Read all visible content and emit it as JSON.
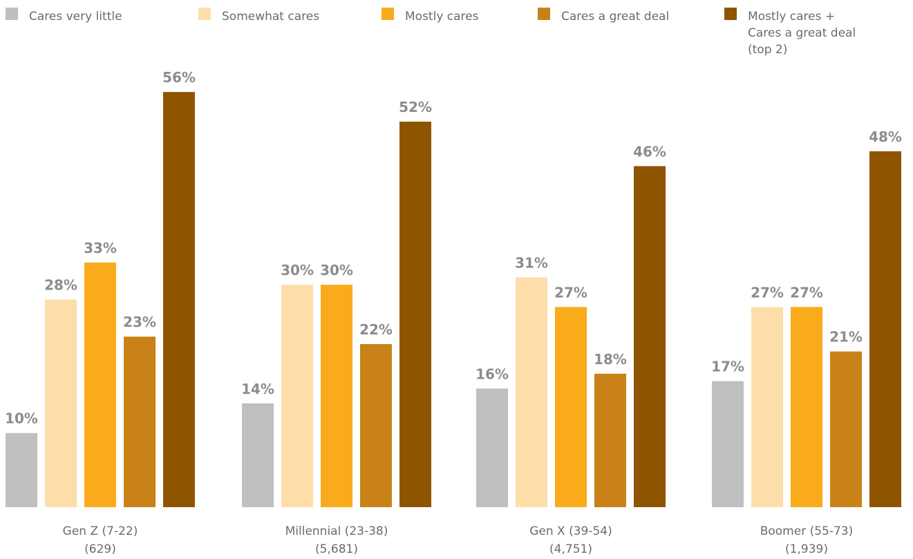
{
  "chart_data": {
    "type": "bar",
    "title": "",
    "xlabel": "",
    "ylabel": "",
    "ylim": [
      0,
      56
    ],
    "grid": false,
    "legend_position": "top",
    "categories": [
      [
        "Gen Z (7-22)",
        "(629)"
      ],
      [
        "Millennial (23-38)",
        "(5,681)"
      ],
      [
        "Gen X (39-54)",
        "(4,751)"
      ],
      [
        "Boomer (55-73)",
        "(1,939)"
      ]
    ],
    "series": [
      {
        "name": [
          "Cares very little"
        ],
        "color": "#bfbfbf",
        "values": [
          10,
          14,
          16,
          17
        ]
      },
      {
        "name": [
          "Somewhat cares"
        ],
        "color": "#fddeaa",
        "values": [
          28,
          30,
          31,
          27
        ]
      },
      {
        "name": [
          "Mostly cares"
        ],
        "color": "#f9ab1c",
        "values": [
          33,
          30,
          27,
          27
        ]
      },
      {
        "name": [
          "Cares a great deal"
        ],
        "color": "#c98217",
        "values": [
          23,
          22,
          18,
          21
        ]
      },
      {
        "name": [
          "Mostly cares +",
          "Cares a great deal",
          "(top 2)"
        ],
        "color": "#8f5400",
        "values": [
          56,
          52,
          46,
          48
        ]
      }
    ],
    "value_suffix": "%"
  }
}
